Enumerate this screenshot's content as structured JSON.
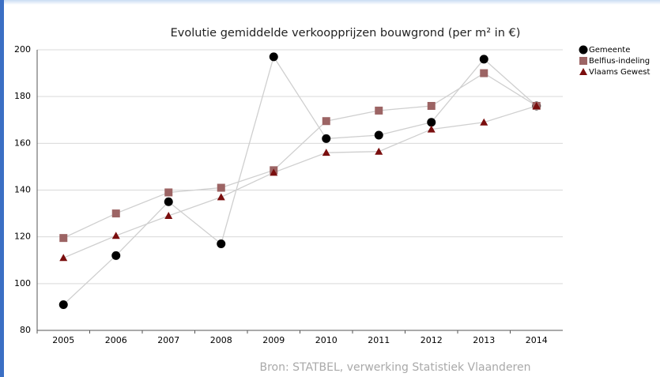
{
  "chart_data": {
    "type": "line",
    "title": "Evolutie gemiddelde verkoopprijzen bouwgrond (per m² in €)",
    "source": "Bron: STATBEL, verwerking Statistiek Vlaanderen",
    "categories": [
      "2005",
      "2006",
      "2007",
      "2008",
      "2009",
      "2010",
      "2011",
      "2012",
      "2013",
      "2014"
    ],
    "series": [
      {
        "name": "Gemeente",
        "color": "#000000",
        "marker": "circle",
        "values": [
          91,
          112,
          135,
          117,
          197,
          162,
          163.5,
          169,
          196,
          176
        ]
      },
      {
        "name": "Belfius-indeling",
        "color": "#9c6464",
        "marker": "square",
        "values": [
          119.5,
          130,
          139,
          141,
          148.5,
          169.5,
          174,
          176,
          190,
          176
        ]
      },
      {
        "name": "Vlaams Gewest",
        "color": "#7a0e0e",
        "marker": "triangle",
        "values": [
          111,
          120.5,
          129,
          137,
          147.5,
          156,
          156.5,
          166,
          169,
          176
        ]
      }
    ],
    "line_color": "#cfcfcf",
    "ylim": [
      80,
      200
    ],
    "yticks": [
      80,
      100,
      120,
      140,
      160,
      180,
      200
    ],
    "grid": true,
    "legend": "right"
  }
}
